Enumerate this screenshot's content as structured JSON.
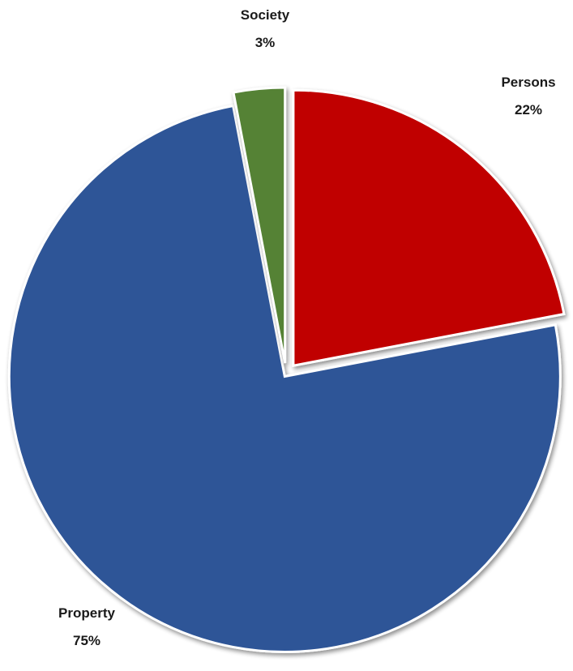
{
  "chart_data": {
    "type": "pie",
    "title": "",
    "exploded": true,
    "start_angle": "12 o'clock, clockwise",
    "slices": [
      {
        "category": "Persons",
        "value": 22,
        "percent_label": "22%",
        "color": "#C00000"
      },
      {
        "category": "Property",
        "value": 75,
        "percent_label": "75%",
        "color": "#2F5597"
      },
      {
        "category": "Society",
        "value": 3,
        "percent_label": "3%",
        "color": "#548235"
      }
    ]
  }
}
